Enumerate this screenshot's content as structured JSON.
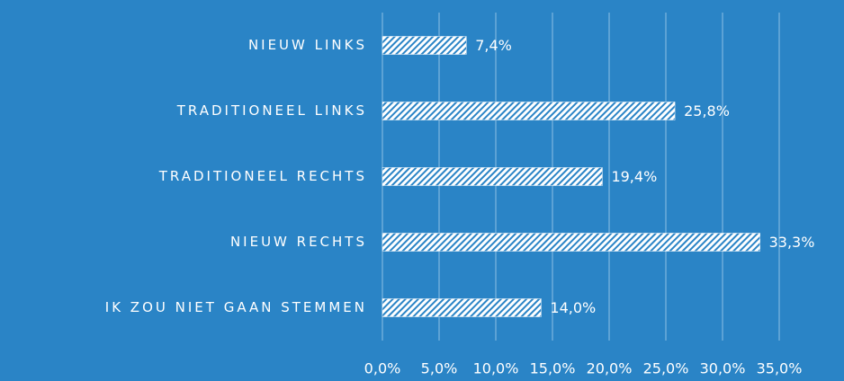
{
  "chart_data": {
    "type": "barh",
    "categories": [
      "NIEUW LINKS",
      "TRADITIONEEL LINKS",
      "TRADITIONEEL RECHTS",
      "NIEUW RECHTS",
      "IK ZOU NIET GAAN STEMMEN"
    ],
    "values": [
      7.4,
      25.8,
      19.4,
      33.3,
      14.0
    ],
    "value_labels": [
      "7,4%",
      "25,8%",
      "19,4%",
      "33,3%",
      "14,0%"
    ],
    "color": "#ffffff",
    "xlim": [
      0,
      35
    ],
    "xticks": [
      {
        "value": 0,
        "label": "0,0%"
      },
      {
        "value": 5,
        "label": "5,0%"
      },
      {
        "value": 10,
        "label": "10,0%"
      },
      {
        "value": 15,
        "label": "15,0%"
      },
      {
        "value": 20,
        "label": "20,0%"
      },
      {
        "value": 25,
        "label": "25,0%"
      },
      {
        "value": 30,
        "label": "30,0%"
      },
      {
        "value": 35,
        "label": "35,0%"
      }
    ],
    "grid": true
  }
}
